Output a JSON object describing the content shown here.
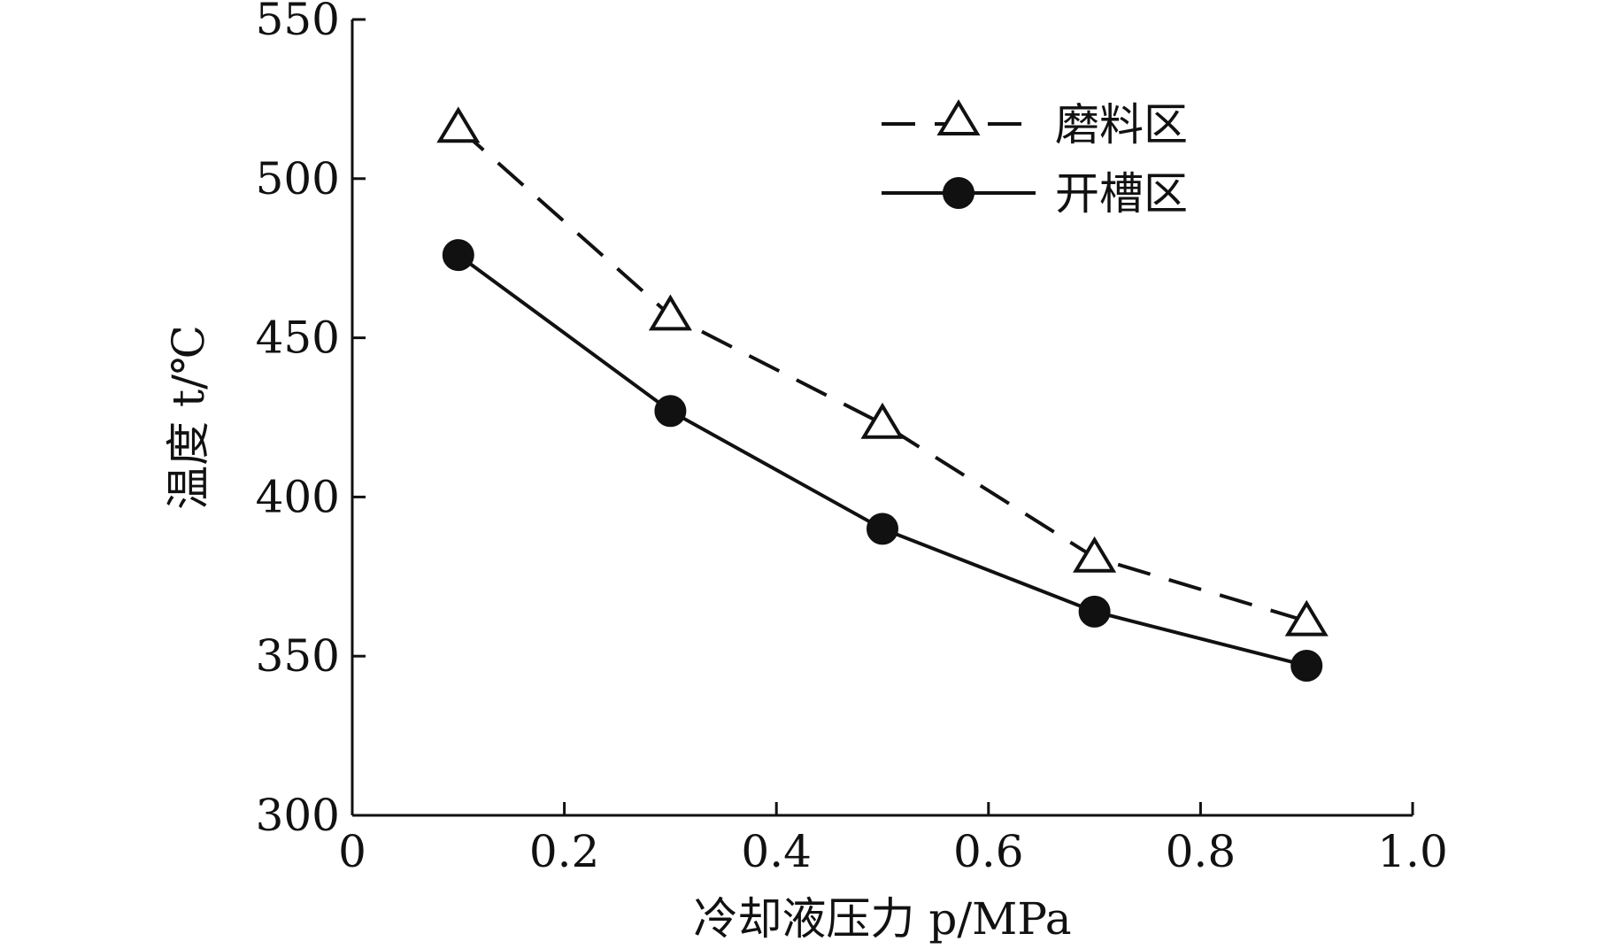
{
  "chart_data": {
    "type": "line",
    "title": "",
    "xlabel": "冷却液压力 p/MPa",
    "ylabel": "温度 t/℃",
    "xlim": [
      0,
      1.0
    ],
    "ylim": [
      300,
      550
    ],
    "xticks": [
      0,
      0.2,
      0.4,
      0.6,
      0.8,
      1.0
    ],
    "xtick_labels": [
      "0",
      "0.2",
      "0.4",
      "0.6",
      "0.8",
      "1.0"
    ],
    "yticks": [
      300,
      350,
      400,
      450,
      500,
      550
    ],
    "ytick_labels": [
      "300",
      "350",
      "400",
      "450",
      "500",
      "550"
    ],
    "x": [
      0.1,
      0.3,
      0.5,
      0.7,
      0.9
    ],
    "grid": false,
    "legend_position": "top-right",
    "series": [
      {
        "name": "磨料区",
        "values": [
          516,
          457,
          423,
          381,
          361
        ],
        "line_style": "dashed",
        "marker": "open-triangle",
        "color": "#111111"
      },
      {
        "name": "开槽区",
        "values": [
          476,
          427,
          390,
          364,
          347
        ],
        "line_style": "solid",
        "marker": "filled-circle",
        "color": "#111111"
      }
    ]
  }
}
